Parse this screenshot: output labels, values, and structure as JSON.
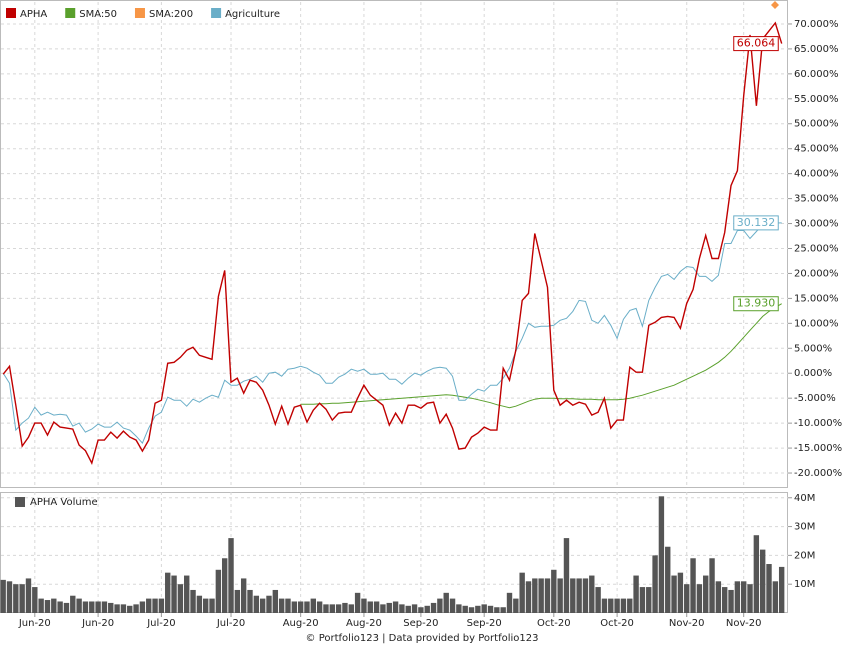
{
  "chart_data": [
    {
      "type": "line",
      "series": [
        {
          "name": "APHA",
          "color": "#c00000",
          "end_label": "66.064",
          "values": [
            -0.2,
            1.4,
            -6.4,
            -14.6,
            -12.8,
            -10,
            -10,
            -12.4,
            -9.8,
            -10.8,
            -11,
            -11.2,
            -14.4,
            -15.5,
            -18,
            -13.4,
            -13.4,
            -11.8,
            -13,
            -11.6,
            -12.8,
            -13.4,
            -15.6,
            -13.4,
            -6,
            -5.4,
            2,
            2.2,
            3.2,
            4.6,
            5.2,
            3.6,
            3.2,
            2.8,
            15.4,
            20.6,
            -1.8,
            -1,
            -4,
            -1.4,
            -1.8,
            -3.4,
            -6.4,
            -10.2,
            -6.6,
            -10.2,
            -6.8,
            -6.4,
            -9.8,
            -7.4,
            -6,
            -7.2,
            -9.4,
            -8,
            -7.8,
            -7.8,
            -5,
            -2.4,
            -4.4,
            -5.4,
            -6.4,
            -10.4,
            -8,
            -10,
            -6.4,
            -6.4,
            -7,
            -6,
            -5.8,
            -10,
            -8.2,
            -11,
            -15.2,
            -15,
            -12.8,
            -12,
            -10.8,
            -11.4,
            -11.4,
            1,
            -1.4,
            4.6,
            14.6,
            16,
            28,
            22.6,
            17.2,
            -3.4,
            -6.4,
            -5.4,
            -6.4,
            -5.8,
            -6.2,
            -8.4,
            -7.8,
            -5,
            -11,
            -9.4,
            -9.4,
            1.2,
            0.2,
            0.2,
            9.6,
            10.2,
            11.2,
            11.4,
            11.2,
            9,
            14,
            16.8,
            23,
            27.6,
            23,
            23,
            28.2,
            37.6,
            40.6,
            55.6,
            67.8,
            53.6,
            67,
            68.6,
            70.2,
            66.064
          ]
        },
        {
          "name": "SMA:50",
          "color": "#5aa02c",
          "end_label": "13.930",
          "values": [
            null,
            null,
            null,
            null,
            null,
            null,
            null,
            null,
            null,
            null,
            null,
            null,
            null,
            null,
            null,
            null,
            null,
            null,
            null,
            null,
            null,
            null,
            null,
            null,
            null,
            null,
            null,
            null,
            null,
            null,
            null,
            null,
            null,
            null,
            null,
            null,
            null,
            null,
            null,
            null,
            null,
            null,
            null,
            null,
            null,
            null,
            null,
            -6.2,
            -6.2,
            -6.2,
            -6.1,
            -6.1,
            -6.0,
            -6.0,
            -5.9,
            -5.8,
            -5.7,
            -5.6,
            -5.5,
            -5.4,
            -5.3,
            -5.2,
            -5.1,
            -5.0,
            -4.9,
            -4.8,
            -4.7,
            -4.6,
            -4.5,
            -4.4,
            -4.3,
            -4.4,
            -4.6,
            -4.8,
            -5.0,
            -5.3,
            -5.6,
            -5.9,
            -6.3,
            -6.6,
            -6.9,
            -6.6,
            -6.1,
            -5.6,
            -5.2,
            -5.0,
            -5.0,
            -5.0,
            -5.1,
            -5.1,
            -5.1,
            -5.2,
            -5.2,
            -5.2,
            -5.3,
            -5.3,
            -5.3,
            -5.3,
            -5.2,
            -5.0,
            -4.7,
            -4.4,
            -4.0,
            -3.6,
            -3.2,
            -2.8,
            -2.4,
            -1.8,
            -1.2,
            -0.6,
            0,
            0.6,
            1.4,
            2.2,
            3.2,
            4.4,
            5.8,
            7.2,
            8.6,
            10.0,
            11.4,
            12.4,
            13.2,
            13.93
          ]
        },
        {
          "name": "SMA:200",
          "color": "#f79646"
        },
        {
          "name": "Agriculture",
          "color": "#6aaec8",
          "end_label": "30.132",
          "values": [
            0,
            -2,
            -11.4,
            -10,
            -9,
            -6.8,
            -8.4,
            -7.8,
            -8.4,
            -8.2,
            -8.4,
            -10.6,
            -10,
            -11.8,
            -11.2,
            -10.2,
            -10.8,
            -10.8,
            -9.8,
            -11,
            -11.4,
            -12.6,
            -14,
            -11,
            -8.6,
            -7.8,
            -4.8,
            -5.4,
            -5.4,
            -6.6,
            -5.2,
            -5.8,
            -5,
            -4.4,
            -4.8,
            -1.4,
            -2.4,
            -2.4,
            -1.6,
            -1.2,
            -0.6,
            -1.8,
            0,
            0.2,
            -0.6,
            0.8,
            1,
            1.4,
            1,
            0.2,
            -0.4,
            -2,
            -2,
            -0.8,
            -0.2,
            0.8,
            0.4,
            0.8,
            -0.2,
            -0.2,
            0,
            -1.2,
            -1.2,
            -2.2,
            -1,
            0,
            -0.4,
            0.4,
            1,
            1.2,
            1,
            -0.6,
            -5.4,
            -5.4,
            -4.2,
            -3.2,
            -3.6,
            -2.4,
            -2.4,
            -1,
            1,
            4.4,
            7,
            10,
            9.2,
            9.4,
            9.4,
            9.6,
            10.6,
            11,
            12.4,
            14.6,
            14.4,
            10.6,
            10,
            11.6,
            9.6,
            7,
            10.8,
            12.6,
            13,
            9.4,
            14.6,
            17.2,
            19.4,
            19.8,
            18.8,
            20.4,
            21.4,
            21.2,
            19.4,
            19.4,
            18.4,
            19.6,
            26,
            26,
            28.6,
            28.6,
            27,
            28.4,
            29.8,
            31.2,
            30.1,
            30.132
          ]
        }
      ],
      "xlim": [
        -0.5,
        124
      ],
      "ylim": [
        -23,
        74.4
      ],
      "yticks": [
        {
          "value": -20,
          "label": "-20.000%"
        },
        {
          "value": -15,
          "label": "-15.000%"
        },
        {
          "value": -10,
          "label": "-10.000%"
        },
        {
          "value": -5,
          "label": "-5.000%"
        },
        {
          "value": 0,
          "label": "0.000%"
        },
        {
          "value": 5,
          "label": "5.000%"
        },
        {
          "value": 10,
          "label": "10.000%"
        },
        {
          "value": 15,
          "label": "15.000%"
        },
        {
          "value": 20,
          "label": "20.000%"
        },
        {
          "value": 25,
          "label": "25.000%"
        },
        {
          "value": 30,
          "label": "30.000%"
        },
        {
          "value": 35,
          "label": "35.000%"
        },
        {
          "value": 40,
          "label": "40.000%"
        },
        {
          "value": 45,
          "label": "45.000%"
        },
        {
          "value": 50,
          "label": "50.000%"
        },
        {
          "value": 55,
          "label": "55.000%"
        },
        {
          "value": 60,
          "label": "60.000%"
        },
        {
          "value": 65,
          "label": "65.000%"
        },
        {
          "value": 70,
          "label": "70.000%"
        }
      ],
      "grid": true
    },
    {
      "type": "bar",
      "series": [
        {
          "name": "APHA Volume",
          "color": "#555555",
          "values": [
            11.5,
            11,
            10,
            10,
            12,
            9,
            5,
            4.5,
            5,
            4,
            3.5,
            6,
            5,
            4,
            4,
            4,
            4,
            3.5,
            3,
            3,
            2.5,
            3,
            4,
            5,
            5,
            5,
            14,
            13,
            10,
            13,
            8,
            6,
            5,
            5,
            15,
            19,
            26,
            8,
            12,
            8,
            6,
            5,
            6,
            8,
            5,
            5,
            4,
            4,
            4,
            5,
            4,
            3,
            3,
            3,
            3.5,
            3,
            7,
            5,
            4,
            4,
            3,
            3.5,
            4,
            3,
            2.5,
            3,
            2,
            2.5,
            3.5,
            5,
            7,
            5,
            3,
            2.5,
            2,
            2.5,
            3,
            2.5,
            2,
            2,
            7,
            5,
            14,
            11,
            12,
            12,
            12,
            15,
            12,
            26,
            12,
            12,
            12,
            13,
            9,
            5,
            5,
            5,
            5,
            5,
            13,
            9,
            9,
            20,
            40.5,
            23,
            13,
            14,
            10,
            19,
            10,
            13,
            19,
            11,
            9,
            8,
            11,
            11,
            10,
            27,
            22,
            17,
            11,
            16
          ]
        }
      ],
      "xlim": [
        -0.5,
        124
      ],
      "xticks": [
        {
          "value": 5,
          "label": "Jun-20"
        },
        {
          "value": 15,
          "label": "Jun-20"
        },
        {
          "value": 25,
          "label": "Jul-20"
        },
        {
          "value": 36,
          "label": "Jul-20"
        },
        {
          "value": 47,
          "label": "Aug-20"
        },
        {
          "value": 57,
          "label": "Aug-20"
        },
        {
          "value": 66,
          "label": "Sep-20"
        },
        {
          "value": 76,
          "label": "Sep-20"
        },
        {
          "value": 87,
          "label": "Oct-20"
        },
        {
          "value": 97,
          "label": "Oct-20"
        },
        {
          "value": 108,
          "label": "Nov-20"
        },
        {
          "value": 117,
          "label": "Nov-20"
        }
      ],
      "ylim": [
        0,
        42
      ],
      "yticks": [
        {
          "value": 10,
          "label": "10M"
        },
        {
          "value": 20,
          "label": "20M"
        },
        {
          "value": 30,
          "label": "30M"
        },
        {
          "value": 40,
          "label": "40M"
        }
      ],
      "grid": true
    }
  ],
  "footer": "© Portfolio123 | Data provided by Portfolio123"
}
